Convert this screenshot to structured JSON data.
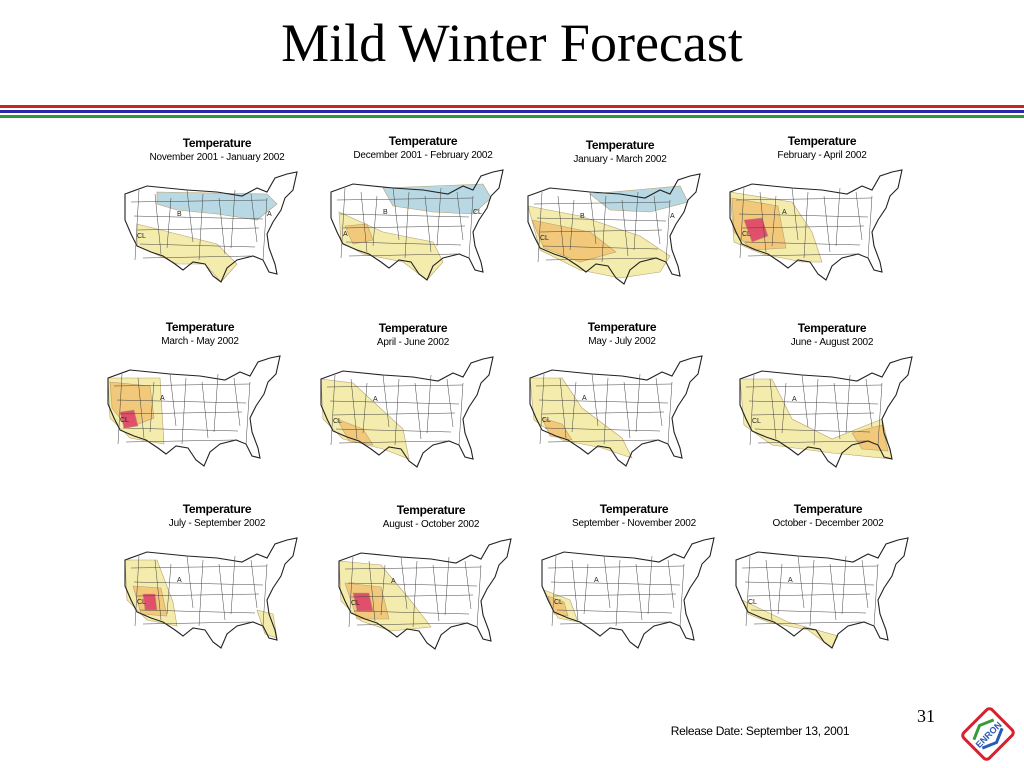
{
  "slide": {
    "title": "Mild Winter Forecast",
    "page_number": "31",
    "release_date": "Release Date: September 13, 2001",
    "rule_colors": [
      "#cc2222",
      "#2a2aa8",
      "#2a9a3a"
    ]
  },
  "maps": [
    {
      "heading": "Temperature",
      "period": "November 2001 - January 2002",
      "regions": [
        "B",
        "CL",
        "A"
      ]
    },
    {
      "heading": "Temperature",
      "period": "December 2001 - February  2002",
      "regions": [
        "B",
        "A",
        "CL"
      ]
    },
    {
      "heading": "Temperature",
      "period": "January - March 2002",
      "regions": [
        "B",
        "CL",
        "A"
      ]
    },
    {
      "heading": "Temperature",
      "period": "February - April 2002",
      "regions": [
        "A",
        "CL"
      ]
    },
    {
      "heading": "Temperature",
      "period": "March - May 2002",
      "regions": [
        "A",
        "CL"
      ]
    },
    {
      "heading": "Temperature",
      "period": "April - June 2002",
      "regions": [
        "A",
        "CL"
      ]
    },
    {
      "heading": "Temperature",
      "period": "May - July 2002",
      "regions": [
        "A",
        "CL"
      ]
    },
    {
      "heading": "Temperature",
      "period": "June - August 2002",
      "regions": [
        "A",
        "CL"
      ]
    },
    {
      "heading": "Temperature",
      "period": "July - September 2002",
      "regions": [
        "A",
        "CL"
      ]
    },
    {
      "heading": "Temperature",
      "period": "August - October 2002",
      "regions": [
        "A",
        "CL"
      ]
    },
    {
      "heading": "Temperature",
      "period": "September - November 2002",
      "regions": [
        "A",
        "CL"
      ]
    },
    {
      "heading": "Temperature",
      "period": "October - December 2002",
      "regions": [
        "A",
        "CL"
      ]
    }
  ],
  "colors": {
    "below_normal": "#b8d8e4",
    "above_light": "#f4ecac",
    "above_medium": "#f2c87a",
    "above_strong": "#ea9a80",
    "above_extreme": "#e0506a"
  },
  "logo_text": "ENRON"
}
